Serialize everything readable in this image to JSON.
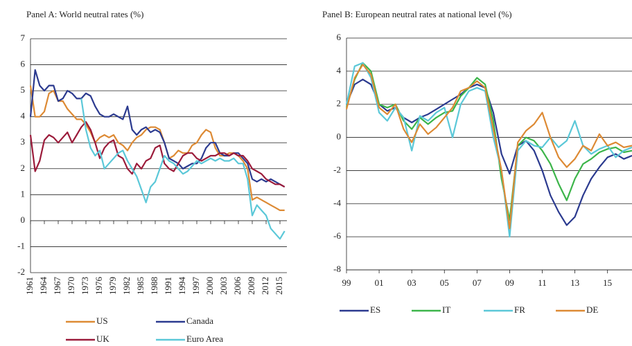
{
  "chart_data": [
    {
      "type": "line",
      "title": "Panel A: World neutral rates (%)",
      "x": [
        1961,
        1962,
        1963,
        1964,
        1965,
        1966,
        1967,
        1968,
        1969,
        1970,
        1971,
        1972,
        1973,
        1974,
        1975,
        1976,
        1977,
        1978,
        1979,
        1980,
        1981,
        1982,
        1983,
        1984,
        1985,
        1986,
        1987,
        1988,
        1989,
        1990,
        1991,
        1992,
        1993,
        1994,
        1995,
        1996,
        1997,
        1998,
        1999,
        2000,
        2001,
        2002,
        2003,
        2004,
        2005,
        2006,
        2007,
        2008,
        2009,
        2010,
        2011,
        2012,
        2013,
        2014,
        2015,
        2016
      ],
      "series": [
        {
          "name": "US",
          "color": "#dd8a34",
          "values": [
            5.2,
            4.0,
            4.0,
            4.2,
            4.9,
            5.0,
            4.6,
            4.6,
            4.3,
            4.1,
            3.9,
            3.9,
            3.7,
            3.4,
            3.0,
            3.2,
            3.3,
            3.2,
            3.3,
            3.0,
            2.9,
            2.7,
            3.0,
            3.2,
            3.3,
            3.5,
            3.6,
            3.6,
            3.5,
            3.0,
            2.4,
            2.5,
            2.7,
            2.6,
            2.6,
            2.9,
            3.0,
            3.3,
            3.5,
            3.4,
            2.8,
            2.5,
            2.5,
            2.6,
            2.6,
            2.5,
            2.3,
            2.0,
            0.8,
            0.9,
            0.8,
            0.7,
            0.6,
            0.5,
            0.4,
            0.4
          ]
        },
        {
          "name": "Canada",
          "color": "#2b3a8f",
          "values": [
            4.0,
            5.8,
            5.2,
            5.0,
            5.2,
            5.2,
            4.6,
            4.7,
            5.0,
            4.9,
            4.7,
            4.7,
            4.9,
            4.8,
            4.4,
            4.1,
            4.0,
            4.0,
            4.1,
            4.0,
            3.9,
            4.4,
            3.5,
            3.3,
            3.5,
            3.6,
            3.4,
            3.5,
            3.4,
            3.0,
            2.4,
            2.3,
            2.2,
            2.0,
            2.1,
            2.2,
            2.2,
            2.4,
            2.8,
            3.0,
            3.0,
            2.6,
            2.5,
            2.5,
            2.6,
            2.6,
            2.4,
            2.2,
            1.6,
            1.5,
            1.6,
            1.5,
            1.6,
            1.5,
            1.4,
            1.3
          ]
        },
        {
          "name": "UK",
          "color": "#9b1b3a",
          "values": [
            3.3,
            1.9,
            2.3,
            3.1,
            3.3,
            3.2,
            3.0,
            3.2,
            3.4,
            3.0,
            3.3,
            3.6,
            3.8,
            3.5,
            3.0,
            2.4,
            2.8,
            3.0,
            3.1,
            2.5,
            2.4,
            2.0,
            1.8,
            2.2,
            2.0,
            2.3,
            2.4,
            2.8,
            2.9,
            2.2,
            2.0,
            1.9,
            2.2,
            2.5,
            2.6,
            2.6,
            2.4,
            2.3,
            2.4,
            2.5,
            2.5,
            2.6,
            2.6,
            2.5,
            2.6,
            2.5,
            2.5,
            2.3,
            2.0,
            1.9,
            1.8,
            1.6,
            1.5,
            1.4,
            1.4,
            1.3
          ]
        },
        {
          "name": "Euro Area",
          "color": "#5bc8d8",
          "values": [
            null,
            null,
            null,
            null,
            null,
            null,
            null,
            null,
            null,
            null,
            null,
            4.7,
            3.5,
            2.8,
            2.5,
            2.7,
            2.0,
            2.2,
            2.4,
            2.6,
            2.7,
            2.3,
            2.0,
            1.7,
            1.2,
            0.7,
            1.3,
            1.5,
            2.0,
            2.5,
            2.3,
            2.2,
            2.0,
            1.8,
            1.9,
            2.1,
            2.3,
            2.2,
            2.3,
            2.4,
            2.3,
            2.4,
            2.3,
            2.3,
            2.4,
            2.2,
            2.2,
            1.6,
            0.2,
            0.6,
            0.4,
            0.2,
            -0.3,
            -0.5,
            -0.7,
            -0.4
          ]
        }
      ],
      "xlim": [
        1961,
        2016.5
      ],
      "ylim": [
        -2,
        7
      ],
      "xticks": [
        1961,
        1964,
        1967,
        1970,
        1973,
        1976,
        1979,
        1982,
        1985,
        1988,
        1991,
        1994,
        1997,
        2000,
        2003,
        2006,
        2009,
        2012,
        2015
      ],
      "yticks": [
        -2,
        -1,
        0,
        1,
        2,
        3,
        4,
        5,
        6,
        7
      ],
      "grid": true,
      "legend": "bottom"
    },
    {
      "type": "line",
      "title": "Panel B: European neutral rates at national level (%)",
      "x": [
        1999,
        1999.5,
        2000,
        2000.5,
        2001,
        2001.5,
        2002,
        2002.5,
        2003,
        2003.5,
        2004,
        2004.5,
        2005,
        2005.5,
        2006,
        2006.5,
        2007,
        2007.5,
        2008,
        2008.5,
        2009,
        2009.5,
        2010,
        2010.5,
        2011,
        2011.5,
        2012,
        2012.5,
        2013,
        2013.5,
        2014,
        2014.5,
        2015,
        2015.5,
        2016,
        2016.5
      ],
      "series": [
        {
          "name": "ES",
          "color": "#2b3a8f",
          "values": [
            2.0,
            3.2,
            3.5,
            3.2,
            2.0,
            1.6,
            1.8,
            1.2,
            0.9,
            1.2,
            1.4,
            1.7,
            2.0,
            2.3,
            2.6,
            3.0,
            3.2,
            3.0,
            1.5,
            -1.0,
            -2.2,
            -0.5,
            -0.2,
            -0.8,
            -2.0,
            -3.5,
            -4.5,
            -5.3,
            -4.8,
            -3.5,
            -2.5,
            -1.8,
            -1.2,
            -1.0,
            -1.3,
            -1.1
          ]
        },
        {
          "name": "IT",
          "color": "#3cb54a",
          "values": [
            1.8,
            3.5,
            4.5,
            4.0,
            2.0,
            1.8,
            2.0,
            1.0,
            0.5,
            1.2,
            0.8,
            1.2,
            1.5,
            1.6,
            2.5,
            3.0,
            3.6,
            3.2,
            1.0,
            -2.5,
            -5.0,
            -0.5,
            0.0,
            -0.2,
            -0.8,
            -1.6,
            -2.8,
            -3.8,
            -2.5,
            -1.6,
            -1.3,
            -0.9,
            -0.7,
            -0.6,
            -0.9,
            -0.8
          ]
        },
        {
          "name": "FR",
          "color": "#5bc8d8",
          "values": [
            2.0,
            4.3,
            4.5,
            3.6,
            1.5,
            1.0,
            1.8,
            1.2,
            -0.8,
            1.3,
            1.0,
            1.5,
            1.8,
            0.0,
            2.0,
            2.8,
            3.0,
            2.8,
            0.0,
            -2.0,
            -6.0,
            -0.8,
            -0.2,
            -0.5,
            -0.6,
            0.0,
            -0.6,
            -0.2,
            1.0,
            -0.5,
            -1.0,
            -0.7,
            -0.5,
            -1.2,
            -0.8,
            -0.6
          ]
        },
        {
          "name": "DE",
          "color": "#dd8a34",
          "values": [
            1.7,
            3.6,
            4.4,
            3.8,
            1.8,
            1.4,
            2.0,
            0.5,
            -0.3,
            0.8,
            0.2,
            0.6,
            1.2,
            1.8,
            2.8,
            3.0,
            3.4,
            3.0,
            0.5,
            -2.0,
            -5.5,
            -0.3,
            0.4,
            0.8,
            1.5,
            0.0,
            -1.2,
            -1.8,
            -1.3,
            -0.5,
            -0.8,
            0.2,
            -0.5,
            -0.3,
            -0.6,
            -0.5
          ]
        }
      ],
      "xlim": [
        1999,
        2016.5
      ],
      "ylim": [
        -8,
        6
      ],
      "xticks": [
        {
          "value": 1999,
          "label": "99"
        },
        {
          "value": 2001,
          "label": "01"
        },
        {
          "value": 2003,
          "label": "03"
        },
        {
          "value": 2005,
          "label": "05"
        },
        {
          "value": 2007,
          "label": "07"
        },
        {
          "value": 2009,
          "label": "09"
        },
        {
          "value": 2011,
          "label": "11"
        },
        {
          "value": 2013,
          "label": "13"
        },
        {
          "value": 2015,
          "label": "15"
        }
      ],
      "yticks": [
        -8,
        -6,
        -4,
        -2,
        0,
        2,
        4,
        6
      ],
      "grid": true,
      "legend": "bottom"
    }
  ]
}
